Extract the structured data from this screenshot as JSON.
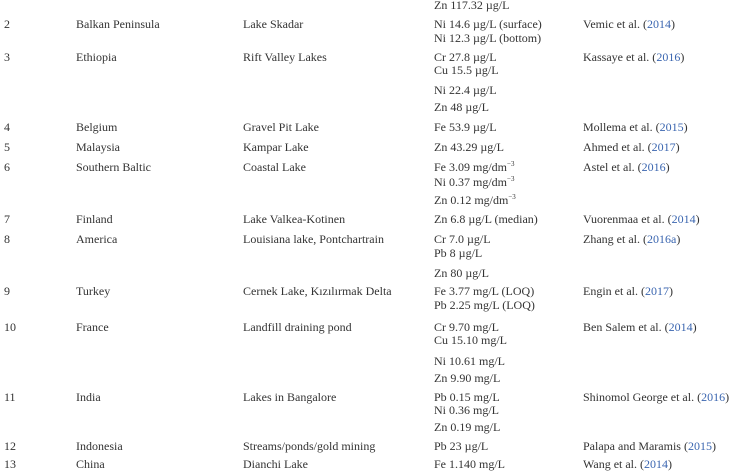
{
  "colors": {
    "text": "#333333",
    "citation_year": "#3b66b0"
  },
  "table": {
    "carryover_values": [
      "Zn 117.32 µg/L"
    ],
    "rows": [
      {
        "no": "2",
        "country": "Balkan Peninsula",
        "lake": "Lake Skadar",
        "values": [
          {
            "text": "Ni 14.6 µg/L (surface)"
          },
          {
            "text": "Ni 12.3 µg/L (bottom)"
          }
        ],
        "ref_author": "Vemic et al. (",
        "ref_year": "2014",
        "ref_close": ")"
      },
      {
        "no": "3",
        "country": "Ethiopia",
        "lake": "Rift Valley Lakes",
        "values": [
          {
            "text": "Cr 27.8 µg/L"
          },
          {
            "text": "Cu 15.5 µg/L"
          },
          {
            "text": "Ni 22.4 µg/L"
          },
          {
            "text": "Zn 48 µg/L"
          }
        ],
        "ref_author": "Kassaye et al. (",
        "ref_year": "2016",
        "ref_close": ")"
      },
      {
        "no": "4",
        "country": "Belgium",
        "lake": "Gravel Pit Lake",
        "values": [
          {
            "text": "Fe 53.9 µg/L"
          }
        ],
        "ref_author": "Mollema et al. (",
        "ref_year": "2015",
        "ref_close": ")"
      },
      {
        "no": "5",
        "country": "Malaysia",
        "lake": "Kampar Lake",
        "values": [
          {
            "text": "Zn 43.29 µg/L"
          }
        ],
        "ref_author": "Ahmed et al. (",
        "ref_year": "2017",
        "ref_close": ")"
      },
      {
        "no": "6",
        "country": "Southern Baltic",
        "lake": "Coastal Lake",
        "values": [
          {
            "text": "Fe 3.09 mg/dm",
            "sup": "−3"
          },
          {
            "text": "Ni 0.37 mg/dm",
            "sup": "−3"
          },
          {
            "text": "Zn 0.12 mg/dm",
            "sup": "−3"
          }
        ],
        "ref_author": "Astel et al. (",
        "ref_year": "2016",
        "ref_close": ")"
      },
      {
        "no": "7",
        "country": "Finland",
        "lake": "Lake Valkea-Kotinen",
        "values": [
          {
            "text": "Zn 6.8 µg/L (median)"
          }
        ],
        "ref_author": "Vuorenmaa et al. (",
        "ref_year": "2014",
        "ref_close": ")"
      },
      {
        "no": "8",
        "country": "America",
        "lake": "Louisiana lake, Pontchartrain",
        "values": [
          {
            "text": "Cr 7.0 µg/L"
          },
          {
            "text": "Pb 8 µg/L"
          },
          {
            "text": "Zn 80 µg/L"
          }
        ],
        "ref_author": "Zhang et al. (",
        "ref_year": "2016a",
        "ref_close": ")"
      },
      {
        "no": "9",
        "country": "Turkey",
        "lake": "Cernek Lake, Kızılırmak Delta",
        "values": [
          {
            "text": "Fe 3.77 mg/L (LOQ)"
          },
          {
            "text": "Pb 2.25 mg/L (LOQ)"
          }
        ],
        "ref_author": "Engin et al. (",
        "ref_year": "2017",
        "ref_close": ")"
      },
      {
        "no": "10",
        "country": "France",
        "lake": "Landfill draining pond",
        "values": [
          {
            "text": "Cr 9.70 mg/L"
          },
          {
            "text": "Cu 15.10 mg/L"
          },
          {
            "text": "Ni 10.61 mg/L"
          },
          {
            "text": "Zn 9.90 mg/L"
          }
        ],
        "ref_author": "Ben Salem et al. (",
        "ref_year": "2014",
        "ref_close": ")"
      },
      {
        "no": "11",
        "country": "India",
        "lake": "Lakes in Bangalore",
        "values": [
          {
            "text": "Pb 0.15 mg/L"
          },
          {
            "text": "Ni 0.36 mg/L"
          },
          {
            "text": "Zn 0.19 mg/L"
          }
        ],
        "ref_author": "Shinomol George et al. (",
        "ref_year": "2016",
        "ref_close": ")"
      },
      {
        "no": "12",
        "country": "Indonesia",
        "lake": "Streams/ponds/gold mining",
        "values": [
          {
            "text": "Pb 23 µg/L"
          }
        ],
        "ref_author": "Palapa and Maramis (",
        "ref_year": "2015",
        "ref_close": ")"
      },
      {
        "no": "13",
        "country": "China",
        "lake": "Dianchi Lake",
        "values": [
          {
            "text": "Fe 1.140 mg/L"
          }
        ],
        "ref_author": "Wang et al. (",
        "ref_year": "2014",
        "ref_close": ")"
      }
    ]
  }
}
